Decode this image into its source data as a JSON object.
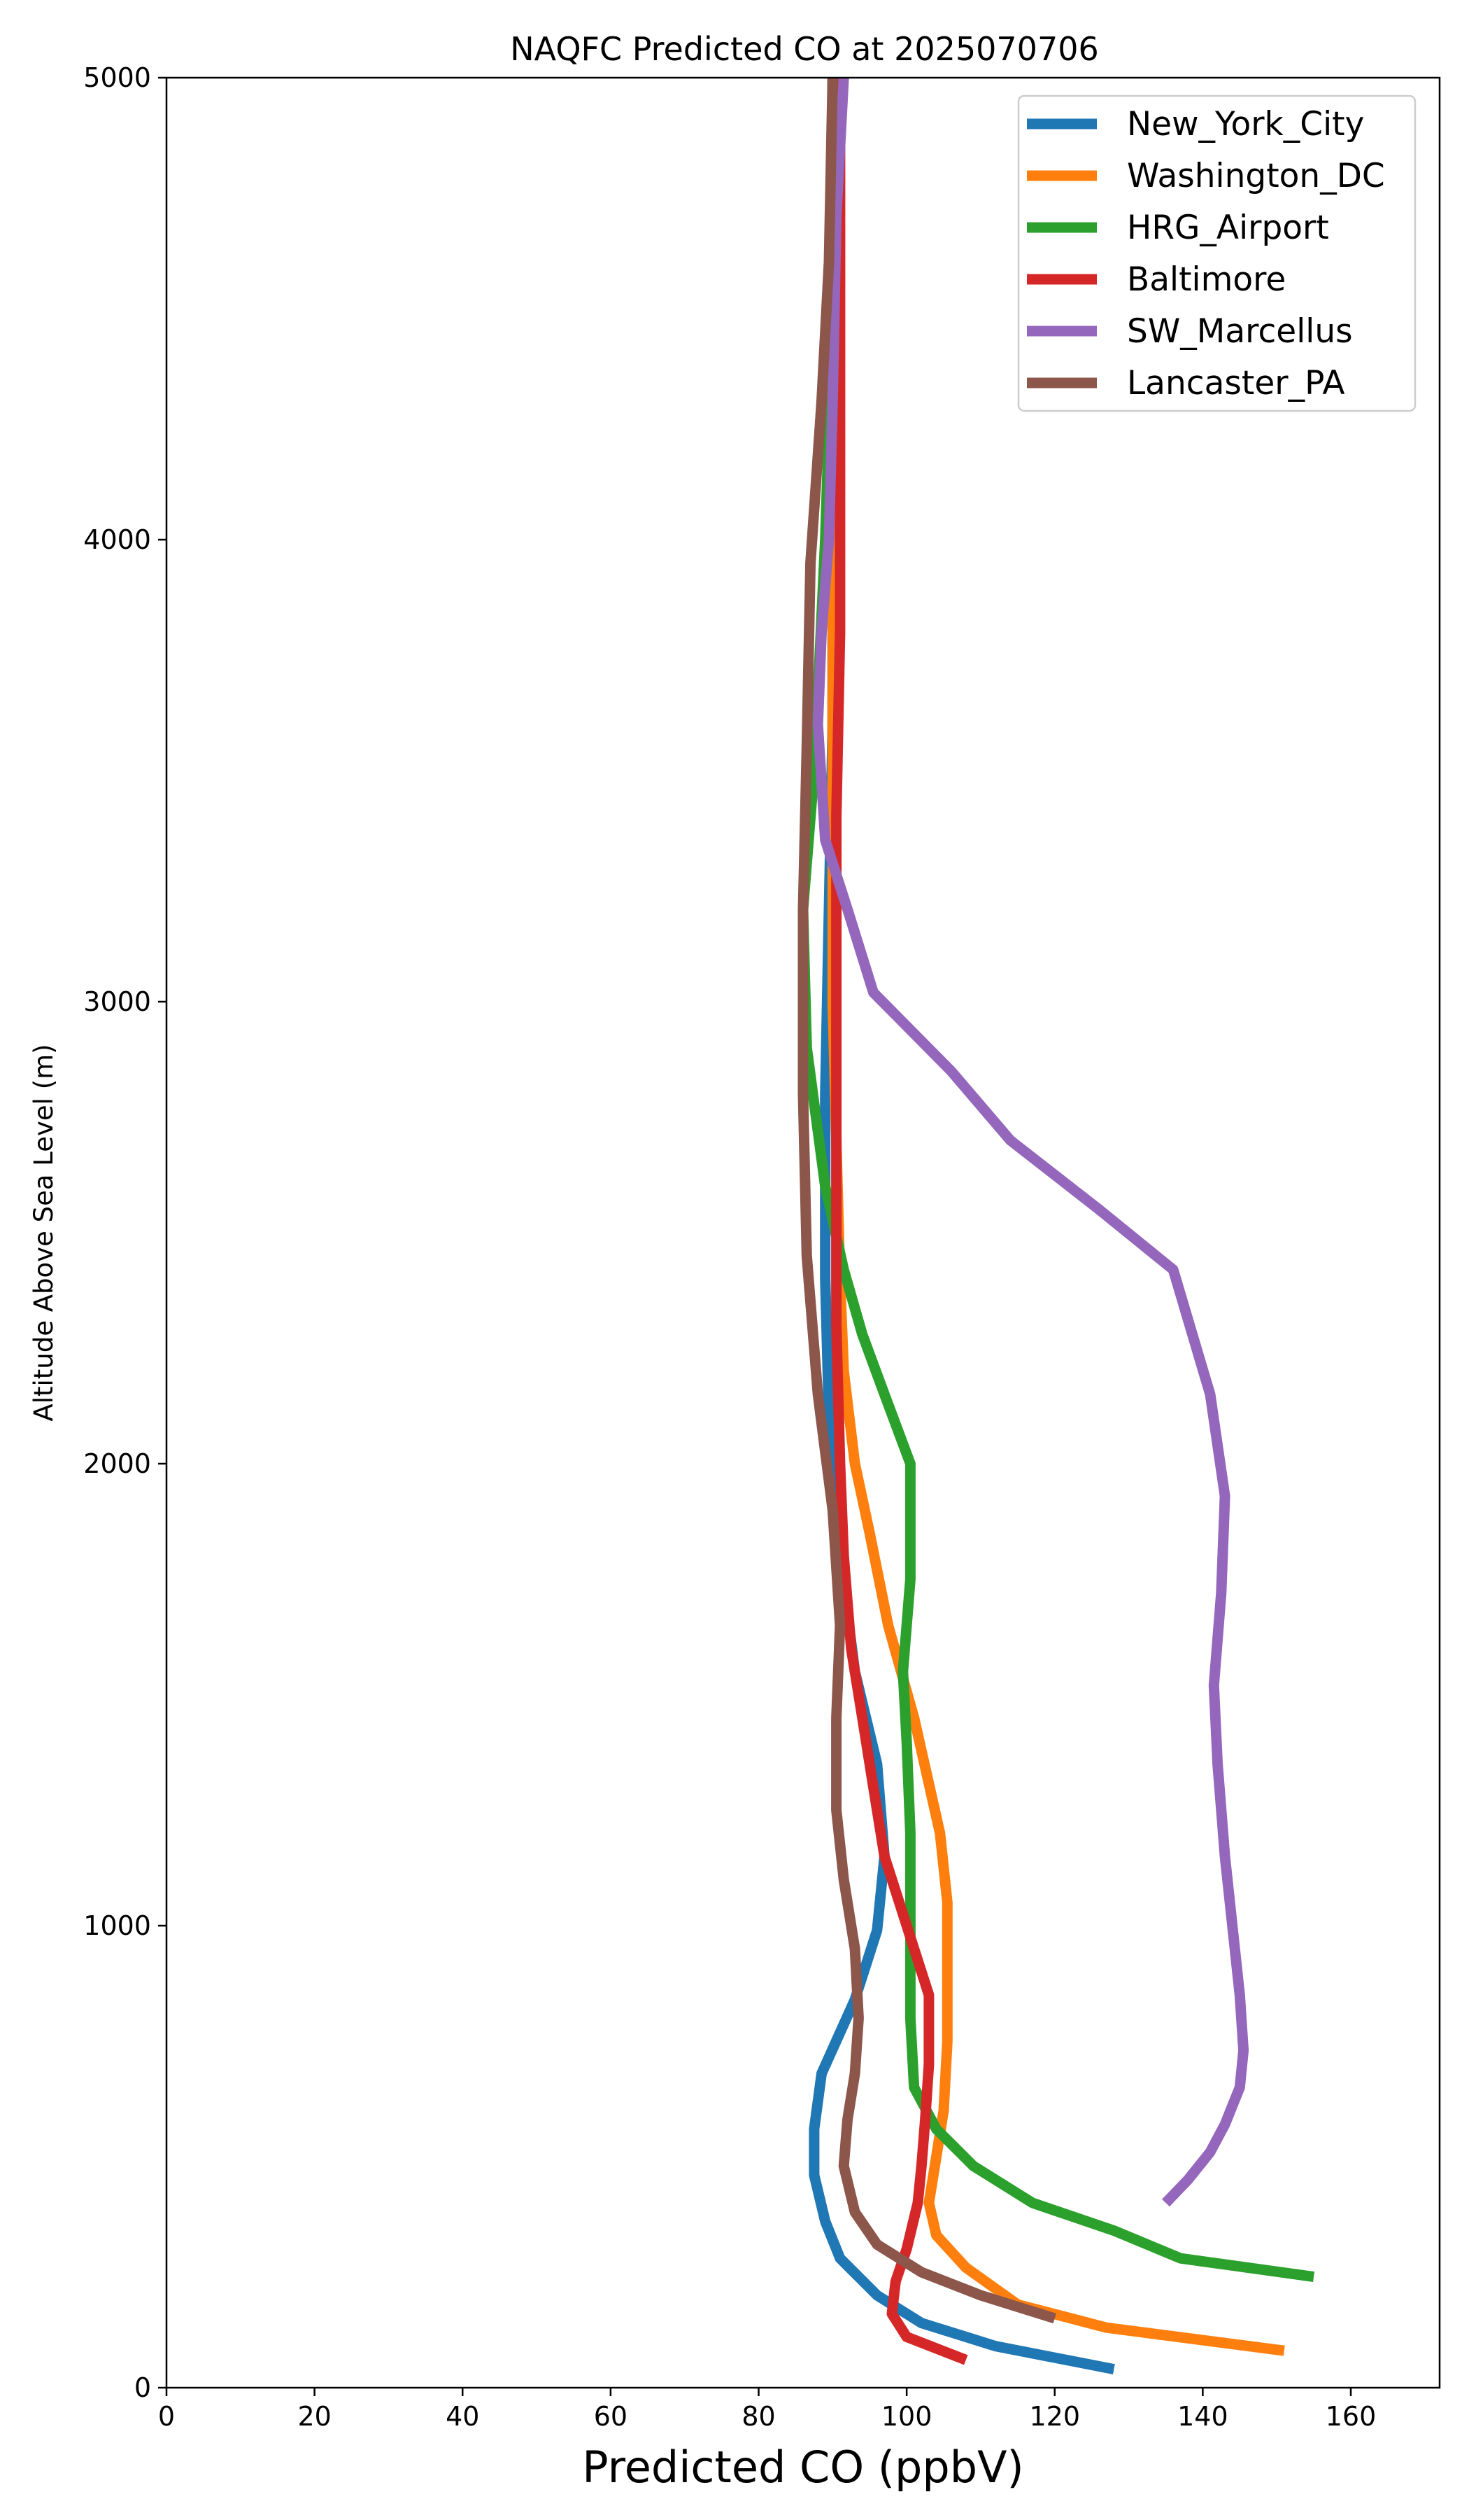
{
  "chart_data": {
    "type": "line",
    "title": "NAQFC Predicted CO at 2025070706",
    "xlabel": "Predicted CO (ppbV)",
    "ylabel": "Altitude Above Sea Level (m)",
    "xlim": [
      0,
      172
    ],
    "ylim": [
      0,
      5000
    ],
    "xticks": [
      "0",
      "20",
      "40",
      "60",
      "80",
      "100",
      "120",
      "140",
      "160"
    ],
    "yticks": [
      "0",
      "1000",
      "2000",
      "3000",
      "4000",
      "5000"
    ],
    "grid": false,
    "legend_position": "top-right",
    "series": [
      {
        "name": "New_York_City",
        "color": "#1f77b4",
        "points": [
          [
            128,
            40
          ],
          [
            112,
            90
          ],
          [
            102,
            140
          ],
          [
            96,
            200
          ],
          [
            91,
            280
          ],
          [
            89,
            360
          ],
          [
            87.5,
            460
          ],
          [
            87.5,
            560
          ],
          [
            88.5,
            680
          ],
          [
            93,
            840
          ],
          [
            96,
            990
          ],
          [
            97,
            1150
          ],
          [
            96,
            1350
          ],
          [
            93,
            1550
          ],
          [
            91,
            1800
          ],
          [
            89.5,
            2100
          ],
          [
            89,
            2400
          ],
          [
            89,
            2800
          ],
          [
            89.5,
            3200
          ],
          [
            90,
            3600
          ],
          [
            90,
            4000
          ],
          [
            90,
            4500
          ],
          [
            90,
            5000
          ]
        ]
      },
      {
        "name": "Washington_DC",
        "color": "#ff7f0e",
        "points": [
          [
            151,
            80
          ],
          [
            127,
            130
          ],
          [
            115,
            180
          ],
          [
            108,
            260
          ],
          [
            104,
            330
          ],
          [
            103,
            400
          ],
          [
            104,
            500
          ],
          [
            105,
            600
          ],
          [
            105.5,
            750
          ],
          [
            105.5,
            900
          ],
          [
            105.5,
            1050
          ],
          [
            104.5,
            1200
          ],
          [
            101,
            1450
          ],
          [
            97.5,
            1650
          ],
          [
            95,
            1850
          ],
          [
            93,
            2000
          ],
          [
            91.5,
            2200
          ],
          [
            91,
            2400
          ],
          [
            90.5,
            2700
          ],
          [
            90,
            3000
          ],
          [
            90,
            3400
          ],
          [
            90,
            3800
          ],
          [
            90,
            4200
          ],
          [
            90,
            4600
          ],
          [
            90,
            5000
          ]
        ]
      },
      {
        "name": "HRG_Airport",
        "color": "#2ca02c",
        "points": [
          [
            155,
            240
          ],
          [
            137,
            280
          ],
          [
            128,
            340
          ],
          [
            117,
            400
          ],
          [
            109,
            480
          ],
          [
            104,
            560
          ],
          [
            101,
            650
          ],
          [
            100.5,
            800
          ],
          [
            100.5,
            1000
          ],
          [
            100.5,
            1200
          ],
          [
            100,
            1400
          ],
          [
            99.5,
            1550
          ],
          [
            100,
            1650
          ],
          [
            100.5,
            1750
          ],
          [
            100.5,
            2000
          ],
          [
            97,
            2150
          ],
          [
            94,
            2280
          ],
          [
            91.5,
            2420
          ],
          [
            89,
            2600
          ],
          [
            86.5,
            2900
          ],
          [
            86,
            3200
          ],
          [
            87.5,
            3500
          ],
          [
            89,
            4000
          ],
          [
            90,
            4500
          ],
          [
            91,
            5000
          ]
        ]
      },
      {
        "name": "Baltimore",
        "color": "#d62728",
        "points": [
          [
            108,
            60
          ],
          [
            100,
            110
          ],
          [
            98,
            160
          ],
          [
            98.5,
            230
          ],
          [
            100,
            300
          ],
          [
            101.5,
            400
          ],
          [
            102,
            480
          ],
          [
            102.5,
            580
          ],
          [
            103,
            700
          ],
          [
            103,
            850
          ],
          [
            101,
            950
          ],
          [
            99,
            1050
          ],
          [
            97,
            1150
          ],
          [
            95.5,
            1300
          ],
          [
            94,
            1450
          ],
          [
            92.5,
            1600
          ],
          [
            91.5,
            1800
          ],
          [
            91,
            2000
          ],
          [
            90.5,
            2300
          ],
          [
            90.5,
            2600
          ],
          [
            90.5,
            3000
          ],
          [
            90.5,
            3400
          ],
          [
            91,
            3800
          ],
          [
            91,
            4200
          ],
          [
            91,
            4600
          ],
          [
            91,
            5000
          ]
        ]
      },
      {
        "name": "SW_Marcellus",
        "color": "#9467bd",
        "points": [
          [
            135,
            400
          ],
          [
            138,
            450
          ],
          [
            141,
            510
          ],
          [
            143,
            570
          ],
          [
            145,
            650
          ],
          [
            145.5,
            730
          ],
          [
            145,
            850
          ],
          [
            144,
            1000
          ],
          [
            143,
            1150
          ],
          [
            142,
            1350
          ],
          [
            141.5,
            1520
          ],
          [
            142.5,
            1720
          ],
          [
            143,
            1930
          ],
          [
            141,
            2150
          ],
          [
            136,
            2420
          ],
          [
            126,
            2550
          ],
          [
            114,
            2700
          ],
          [
            106,
            2850
          ],
          [
            95.5,
            3020
          ],
          [
            92,
            3200
          ],
          [
            89,
            3350
          ],
          [
            88,
            3600
          ],
          [
            88.5,
            3800
          ],
          [
            89.5,
            4000
          ],
          [
            90,
            4300
          ],
          [
            90.5,
            4700
          ],
          [
            91.5,
            5000
          ]
        ]
      },
      {
        "name": "Lancaster_PA",
        "color": "#8c564b",
        "points": [
          [
            120,
            150
          ],
          [
            110,
            200
          ],
          [
            102,
            250
          ],
          [
            96,
            310
          ],
          [
            93,
            380
          ],
          [
            91.5,
            480
          ],
          [
            92,
            580
          ],
          [
            93,
            680
          ],
          [
            93.5,
            800
          ],
          [
            93,
            950
          ],
          [
            91.5,
            1100
          ],
          [
            90.5,
            1250
          ],
          [
            90.5,
            1450
          ],
          [
            91,
            1650
          ],
          [
            90,
            1900
          ],
          [
            88,
            2150
          ],
          [
            86.5,
            2450
          ],
          [
            86,
            2800
          ],
          [
            86,
            3200
          ],
          [
            86.5,
            3550
          ],
          [
            87,
            3950
          ],
          [
            88.5,
            4300
          ],
          [
            89.5,
            4600
          ],
          [
            90,
            5000
          ]
        ]
      }
    ]
  }
}
